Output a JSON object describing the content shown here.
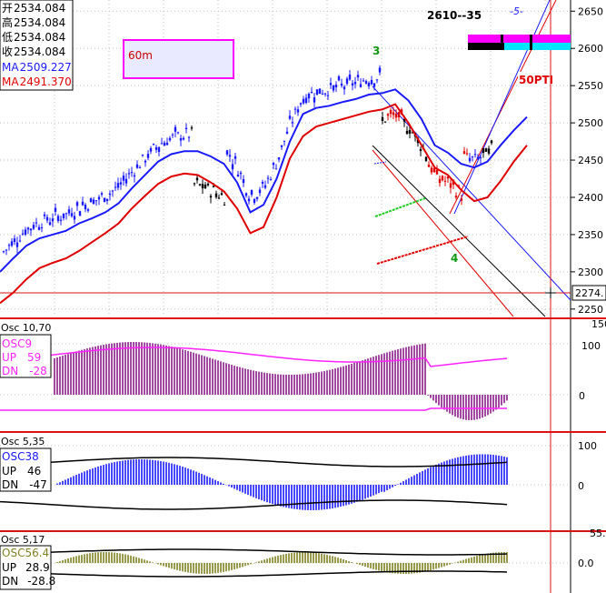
{
  "colors": {
    "background": "#ffffff",
    "grid": "#bfbfbf",
    "cursor": "#dd1111",
    "ma_short": "#1a1aff",
    "ma_long": "#e00000",
    "candle_up": "#1a1aff",
    "candle_down": "#000000",
    "candle_red": "#e00000",
    "osc9_bars": "#8a1a8a",
    "osc9_line": "#ff22ff",
    "osc38_bars": "#1a1aff",
    "osc38_line": "#000000",
    "osc56_bars": "#808020",
    "osc56_line": "#000000",
    "magenta_bar": "#ff00ff",
    "cyan_bar": "#00e5ff"
  },
  "info": {
    "open_label": "开",
    "open_value": "2534.084",
    "high_label": "高",
    "high_value": "2534.084",
    "low_label": "低",
    "low_value": "2534.084",
    "close_label": "收",
    "close_value": "2534.084",
    "ma1_label": "MA",
    "ma1_value": "2509.227",
    "ma2_label": "MA",
    "ma2_value": "2491.370"
  },
  "timeframe_box": "60m",
  "contract_label": "2610--35",
  "annotations": {
    "wave3": "3",
    "wave4": "4",
    "wave5": "-5-",
    "pti": "50PTI"
  },
  "cursor_price_label": "2274.",
  "main_axis": {
    "ticks": [
      2650,
      2600,
      2550,
      2500,
      2450,
      2400,
      2350,
      2300,
      2250
    ],
    "ylim": [
      2240,
      2665
    ]
  },
  "osc1": {
    "title": "Osc 10,70",
    "name": "OSC9",
    "up_label": "UP",
    "up_value": "59",
    "dn_label": "DN",
    "dn_value": "-28",
    "axis_ticks": [
      "150",
      "100",
      "0"
    ]
  },
  "osc2": {
    "title": "Osc 5,35",
    "name": "OSC38",
    "up_label": "UP",
    "up_value": "46",
    "dn_label": "DN",
    "dn_value": "-47",
    "axis_ticks": [
      "100",
      "0"
    ]
  },
  "osc3": {
    "title": "Osc 5,17",
    "name": "OSC56.4",
    "up_label": "UP",
    "up_value": "28.9",
    "dn_label": "DN",
    "dn_value": "-28.8",
    "axis_ticks": [
      "55.",
      "0.0"
    ]
  },
  "chart_data": {
    "type": "line",
    "title": "",
    "xlabel": "",
    "ylabel": "",
    "ylim": [
      2240,
      2665
    ],
    "series": [
      {
        "name": "MA 2509.227",
        "values": [
          2300,
          2318,
          2335,
          2345,
          2350,
          2355,
          2365,
          2372,
          2380,
          2392,
          2412,
          2430,
          2448,
          2458,
          2462,
          2462,
          2455,
          2445,
          2420,
          2380,
          2390,
          2425,
          2475,
          2512,
          2520,
          2523,
          2528,
          2532,
          2538,
          2540,
          2545,
          2530,
          2505,
          2470,
          2460,
          2445,
          2440,
          2448,
          2470,
          2490,
          2508
        ]
      },
      {
        "name": "MA 2491.370",
        "values": [
          2258,
          2272,
          2290,
          2305,
          2312,
          2318,
          2328,
          2340,
          2352,
          2365,
          2385,
          2402,
          2418,
          2428,
          2432,
          2430,
          2420,
          2408,
          2385,
          2352,
          2360,
          2400,
          2452,
          2482,
          2495,
          2500,
          2505,
          2510,
          2515,
          2518,
          2525,
          2500,
          2470,
          2440,
          2430,
          2410,
          2395,
          2400,
          2422,
          2448,
          2470
        ]
      }
    ]
  }
}
